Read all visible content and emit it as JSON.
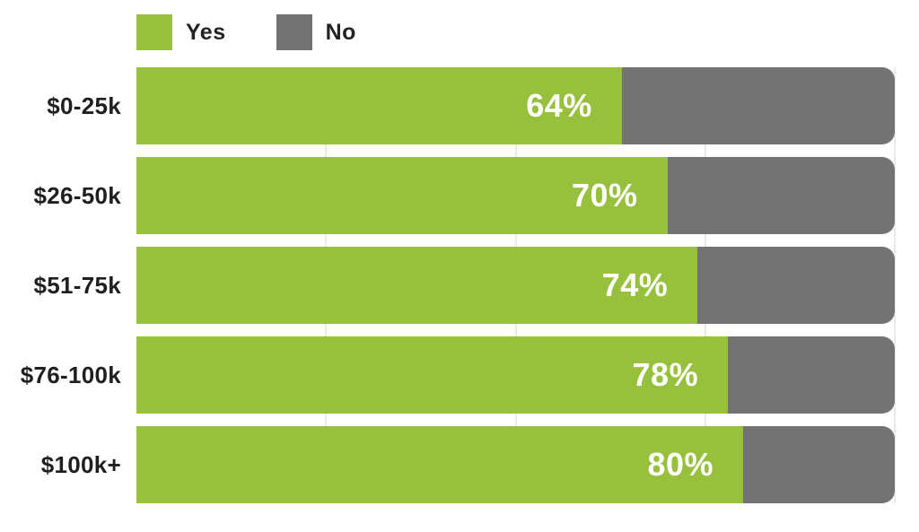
{
  "chart_data": {
    "type": "bar",
    "orientation": "horizontal",
    "stacked": true,
    "title": "",
    "categories": [
      "$0-25k",
      "$26-50k",
      "$51-75k",
      "$76-100k",
      "$100k+"
    ],
    "series": [
      {
        "name": "Yes",
        "color": "#97c13c",
        "values": [
          64,
          70,
          74,
          78,
          80
        ]
      },
      {
        "name": "No",
        "color": "#737373",
        "values": [
          36,
          30,
          26,
          22,
          20
        ]
      }
    ],
    "bar_labels": [
      "64%",
      "70%",
      "74%",
      "78%",
      "80%"
    ],
    "value_unit": "%",
    "xlim": [
      0,
      100
    ],
    "grid": {
      "vertical_lines_percent": [
        25,
        50,
        75,
        100
      ],
      "color": "#eaeaea"
    },
    "legend_position": "top"
  },
  "legend": {
    "items": [
      {
        "label": "Yes",
        "color": "#97c13c"
      },
      {
        "label": "No",
        "color": "#737373"
      }
    ]
  },
  "colors": {
    "yes_fill": "#97c13c",
    "no_fill": "#737373",
    "bar_label_text": "#ffffff",
    "category_text": "#1f1f1f",
    "background": "#ffffff",
    "gridline": "#eaeaea"
  }
}
